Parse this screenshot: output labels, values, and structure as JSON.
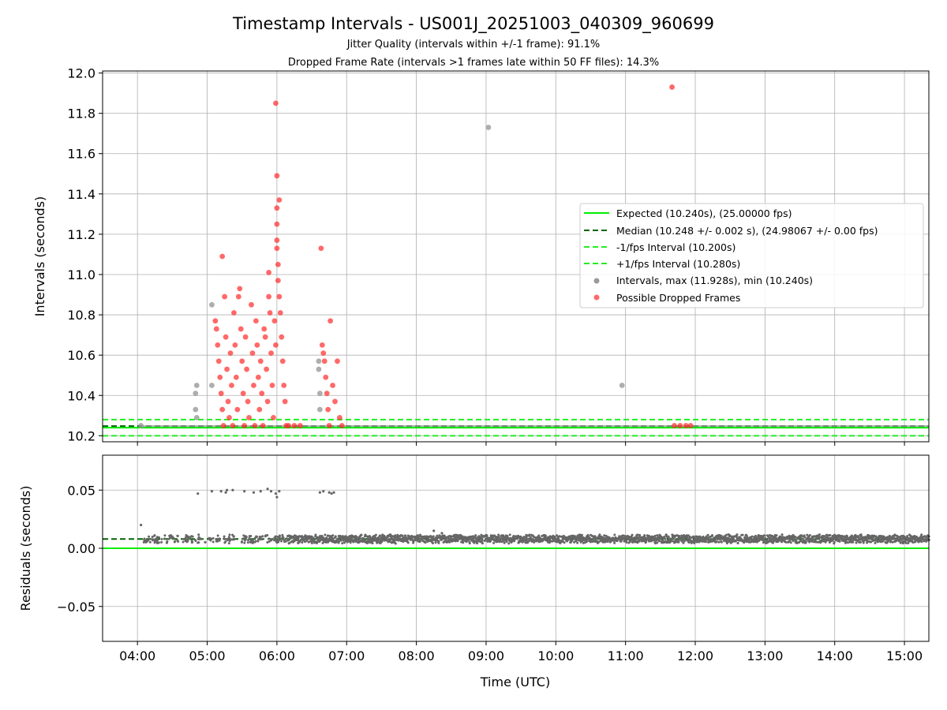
{
  "title": "Timestamp Intervals - US001J_20251003_040309_960699",
  "subtitle_1": "Jitter Quality (intervals within +/-1 frame): 91.1%",
  "subtitle_2": "Dropped Frame Rate (intervals >1 frames late within 50 FF files): 14.3%",
  "colors": {
    "expected": "#00ee00",
    "median": "#006400",
    "fps_bounds": "#22ee22",
    "intervals": "#9a9a9a",
    "dropped": "#ff2a2a",
    "residuals": "#666666"
  },
  "chart_data": [
    {
      "type": "scatter",
      "panel": "top",
      "ylabel": "Intervals (seconds)",
      "xlabel": "",
      "ylim": [
        10.17,
        12.01
      ],
      "xlim": [
        "03:30",
        "15:21"
      ],
      "yticks": [
        "10.2",
        "10.4",
        "10.6",
        "10.8",
        "11.0",
        "11.2",
        "11.4",
        "11.6",
        "11.8",
        "12.0"
      ],
      "grid": true,
      "legend_position": "center-right",
      "reference_lines": [
        {
          "name": "Expected (10.240s), (25.00000 fps)",
          "y": 10.24,
          "style": "solid"
        },
        {
          "name": "Median (10.248 +/- 0.002 s), (24.98067 +/- 0.00 fps)",
          "y": 10.248,
          "style": "dashed"
        },
        {
          "name": "-1/fps Interval (10.200s)",
          "y": 10.2,
          "style": "dashed"
        },
        {
          "name": "+1/fps Interval (10.280s)",
          "y": 10.28,
          "style": "dashed"
        }
      ],
      "series": [
        {
          "name": "Intervals, max (11.928s), min (10.240s)",
          "points": [
            [
              "04:03",
              10.25
            ],
            [
              "04:50",
              10.33
            ],
            [
              "04:50",
              10.41
            ],
            [
              "04:51",
              10.45
            ],
            [
              "04:51",
              10.29
            ],
            [
              "05:04",
              10.85
            ],
            [
              "05:04",
              10.45
            ],
            [
              "06:36",
              10.57
            ],
            [
              "06:36",
              10.53
            ],
            [
              "06:37",
              10.41
            ],
            [
              "06:37",
              10.33
            ],
            [
              "09:02",
              11.73
            ],
            [
              "10:57",
              10.45
            ]
          ]
        },
        {
          "name": "Possible Dropped Frames",
          "points": [
            [
              "05:07",
              10.77
            ],
            [
              "05:08",
              10.73
            ],
            [
              "05:09",
              10.65
            ],
            [
              "05:10",
              10.57
            ],
            [
              "05:11",
              10.49
            ],
            [
              "05:12",
              10.41
            ],
            [
              "05:13",
              10.33
            ],
            [
              "05:14",
              10.25
            ],
            [
              "05:13",
              11.09
            ],
            [
              "05:15",
              10.89
            ],
            [
              "05:16",
              10.69
            ],
            [
              "05:17",
              10.53
            ],
            [
              "05:18",
              10.37
            ],
            [
              "05:19",
              10.29
            ],
            [
              "05:20",
              10.61
            ],
            [
              "05:21",
              10.45
            ],
            [
              "05:22",
              10.25
            ],
            [
              "05:23",
              10.81
            ],
            [
              "05:24",
              10.65
            ],
            [
              "05:25",
              10.49
            ],
            [
              "05:26",
              10.33
            ],
            [
              "05:27",
              10.89
            ],
            [
              "05:28",
              10.93
            ],
            [
              "05:29",
              10.73
            ],
            [
              "05:30",
              10.57
            ],
            [
              "05:31",
              10.41
            ],
            [
              "05:32",
              10.25
            ],
            [
              "05:33",
              10.69
            ],
            [
              "05:34",
              10.53
            ],
            [
              "05:35",
              10.37
            ],
            [
              "05:36",
              10.29
            ],
            [
              "05:38",
              10.85
            ],
            [
              "05:39",
              10.61
            ],
            [
              "05:40",
              10.45
            ],
            [
              "05:41",
              10.25
            ],
            [
              "05:42",
              10.77
            ],
            [
              "05:43",
              10.65
            ],
            [
              "05:44",
              10.49
            ],
            [
              "05:45",
              10.33
            ],
            [
              "05:46",
              10.57
            ],
            [
              "05:47",
              10.41
            ],
            [
              "05:48",
              10.25
            ],
            [
              "05:49",
              10.73
            ],
            [
              "05:50",
              10.69
            ],
            [
              "05:51",
              10.53
            ],
            [
              "05:52",
              10.37
            ],
            [
              "05:53",
              10.89
            ],
            [
              "05:53",
              11.01
            ],
            [
              "05:54",
              10.81
            ],
            [
              "05:55",
              10.61
            ],
            [
              "05:56",
              10.45
            ],
            [
              "05:57",
              10.29
            ],
            [
              "05:58",
              10.77
            ],
            [
              "05:59",
              10.65
            ],
            [
              "05:59",
              11.85
            ],
            [
              "06:00",
              11.49
            ],
            [
              "06:00",
              11.33
            ],
            [
              "06:00",
              11.25
            ],
            [
              "06:00",
              11.17
            ],
            [
              "06:00",
              11.13
            ],
            [
              "06:01",
              11.05
            ],
            [
              "06:01",
              10.97
            ],
            [
              "06:02",
              11.37
            ],
            [
              "06:02",
              10.89
            ],
            [
              "06:03",
              10.81
            ],
            [
              "06:04",
              10.69
            ],
            [
              "06:05",
              10.57
            ],
            [
              "06:06",
              10.45
            ],
            [
              "06:07",
              10.37
            ],
            [
              "06:08",
              10.25
            ],
            [
              "06:10",
              10.25
            ],
            [
              "06:15",
              10.25
            ],
            [
              "06:20",
              10.25
            ],
            [
              "06:38",
              11.13
            ],
            [
              "06:39",
              10.65
            ],
            [
              "06:40",
              10.61
            ],
            [
              "06:41",
              10.57
            ],
            [
              "06:42",
              10.49
            ],
            [
              "06:43",
              10.41
            ],
            [
              "06:44",
              10.33
            ],
            [
              "06:45",
              10.25
            ],
            [
              "06:46",
              10.77
            ],
            [
              "06:48",
              10.45
            ],
            [
              "06:50",
              10.37
            ],
            [
              "06:52",
              10.57
            ],
            [
              "06:54",
              10.29
            ],
            [
              "06:56",
              10.25
            ],
            [
              "11:40",
              11.93
            ],
            [
              "11:42",
              10.25
            ],
            [
              "11:47",
              10.25
            ],
            [
              "11:52",
              10.25
            ],
            [
              "11:56",
              10.25
            ]
          ]
        }
      ]
    },
    {
      "type": "scatter",
      "panel": "bottom",
      "ylabel": "Residuals (seconds)",
      "xlabel": "Time (UTC)",
      "ylim": [
        -0.08,
        0.08
      ],
      "yticks": [
        "−0.05",
        "0.00",
        "0.05"
      ],
      "xticks": [
        "04:00",
        "05:00",
        "06:00",
        "07:00",
        "08:00",
        "09:00",
        "10:00",
        "11:00",
        "12:00",
        "13:00",
        "14:00",
        "15:00"
      ],
      "grid": true,
      "reference_lines": [
        {
          "y": 0.0,
          "style": "solid"
        },
        {
          "y": 0.008,
          "style": "dashed"
        }
      ],
      "series": [
        {
          "points": [
            [
              "04:03",
              0.02
            ],
            [
              "04:52",
              0.047
            ],
            [
              "05:04",
              0.049
            ],
            [
              "05:12",
              0.049
            ],
            [
              "05:16",
              0.048
            ],
            [
              "05:17",
              0.05
            ],
            [
              "05:22",
              0.05
            ],
            [
              "05:32",
              0.049
            ],
            [
              "05:40",
              0.048
            ],
            [
              "05:46",
              0.049
            ],
            [
              "05:52",
              0.051
            ],
            [
              "05:55",
              0.049
            ],
            [
              "05:59",
              0.047
            ],
            [
              "06:00",
              0.044
            ],
            [
              "06:02",
              0.049
            ],
            [
              "06:37",
              0.048
            ],
            [
              "06:40",
              0.049
            ],
            [
              "06:45",
              0.048
            ],
            [
              "06:47",
              0.047
            ],
            [
              "06:49",
              0.048
            ],
            [
              "08:15",
              0.015
            ],
            [
              "08:22",
              0.013
            ]
          ],
          "band_from": "04:05",
          "band_to": "15:21",
          "band_center": 0.008,
          "band_spread": 0.003
        }
      ]
    }
  ]
}
